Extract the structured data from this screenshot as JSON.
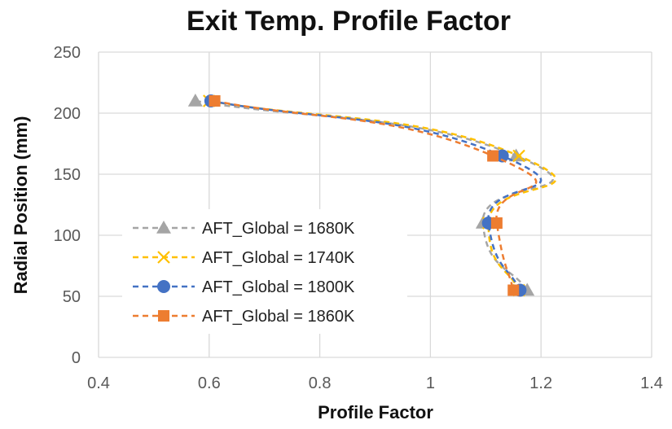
{
  "chart_data": {
    "type": "line",
    "title": "Exit Temp. Profile Factor",
    "xlabel": "Profile Factor",
    "ylabel": "Radial Position (mm)",
    "xlim": [
      0.4,
      1.4
    ],
    "ylim": [
      0,
      250
    ],
    "x_ticks": [
      "0.4",
      "0.6",
      "0.8",
      "1",
      "1.2",
      "1.4"
    ],
    "y_ticks": [
      "0",
      "50",
      "100",
      "150",
      "200",
      "250"
    ],
    "grid": true,
    "legend_position": "left",
    "series": [
      {
        "name": "AFT_Global = 1680K",
        "color": "#a5a5a5",
        "marker": "triangle",
        "points": [
          {
            "x": 0.575,
            "y": 210
          },
          {
            "x": 1.155,
            "y": 165
          },
          {
            "x": 1.095,
            "y": 110
          },
          {
            "x": 1.175,
            "y": 55
          }
        ]
      },
      {
        "name": "AFT_Global = 1740K",
        "color": "#ffc000",
        "marker": "x",
        "points": [
          {
            "x": 0.6,
            "y": 210
          },
          {
            "x": 1.16,
            "y": 165
          },
          {
            "x": 1.105,
            "y": 110
          },
          {
            "x": 1.16,
            "y": 55
          }
        ]
      },
      {
        "name": "AFT_Global = 1800K",
        "color": "#4472c4",
        "marker": "circle",
        "points": [
          {
            "x": 0.603,
            "y": 210
          },
          {
            "x": 1.13,
            "y": 165
          },
          {
            "x": 1.105,
            "y": 110
          },
          {
            "x": 1.162,
            "y": 55
          }
        ]
      },
      {
        "name": "AFT_Global = 1860K",
        "color": "#ed7d31",
        "marker": "square",
        "points": [
          {
            "x": 0.61,
            "y": 210
          },
          {
            "x": 1.113,
            "y": 165
          },
          {
            "x": 1.12,
            "y": 110
          },
          {
            "x": 1.15,
            "y": 55
          }
        ]
      }
    ]
  }
}
